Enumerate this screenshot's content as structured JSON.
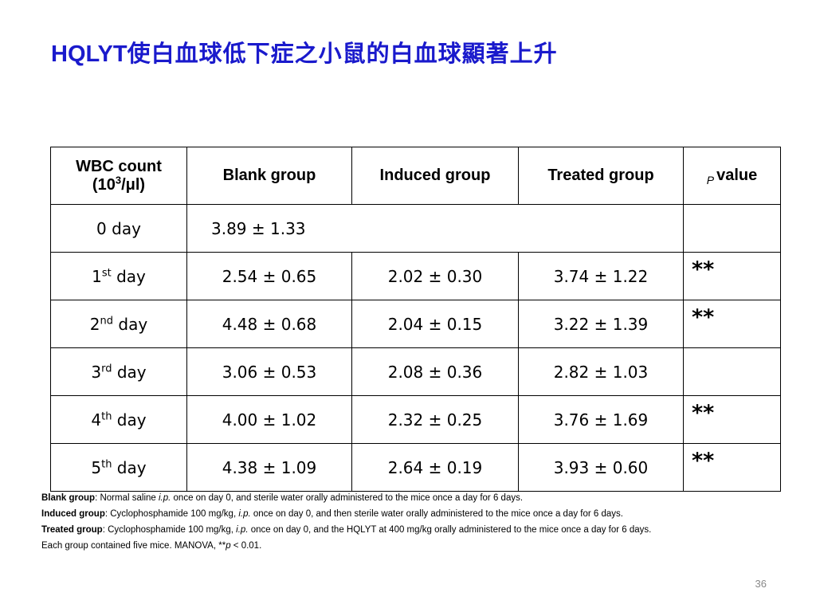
{
  "title": {
    "latin": "HQLYT",
    "cjk": "使白血球低下症之小鼠的白血球顯著上升"
  },
  "table": {
    "headers": {
      "wbc_line1": "WBC count",
      "wbc_line2_prefix": "(10",
      "wbc_line2_sup": "3",
      "wbc_line2_suffix": "/μl)",
      "blank": "Blank group",
      "induced": "Induced group",
      "treated": "Treated group",
      "p_letter": "P",
      "p_rest": "value"
    },
    "rows": [
      {
        "day_num": "0",
        "day_sup": "",
        "day_text": " day",
        "blank": "3.89 ± 1.33",
        "induced": "",
        "treated": "",
        "p": ""
      },
      {
        "day_num": "1",
        "day_sup": "st",
        "day_text": " day",
        "blank": "2.54 ± 0.65",
        "induced": "2.02 ± 0.30",
        "treated": "3.74 ± 1.22",
        "p": "**"
      },
      {
        "day_num": "2",
        "day_sup": "nd",
        "day_text": " day",
        "blank": "4.48 ± 0.68",
        "induced": "2.04 ± 0.15",
        "treated": "3.22 ± 1.39",
        "p": "**"
      },
      {
        "day_num": "3",
        "day_sup": "rd",
        "day_text": " day",
        "blank": "3.06 ± 0.53",
        "induced": "2.08 ± 0.36",
        "treated": "2.82 ± 1.03",
        "p": ""
      },
      {
        "day_num": "4",
        "day_sup": "th",
        "day_text": " day",
        "blank": "4.00 ± 1.02",
        "induced": "2.32 ± 0.25",
        "treated": "3.76 ± 1.69",
        "p": "**"
      },
      {
        "day_num": "5",
        "day_sup": "th",
        "day_text": " day",
        "blank": "4.38 ± 1.09",
        "induced": "2.64 ± 0.19",
        "treated": "3.93 ± 0.60",
        "p": "**"
      }
    ]
  },
  "footnotes": {
    "blank": {
      "label": "Blank group",
      "before_ip": ": Normal saline ",
      "ip": "i.p.",
      "after_ip": " once on day 0, and sterile water orally administered to the mice once a day for 6 days."
    },
    "induced": {
      "label": "Induced group",
      "before_ip": ": Cyclophosphamide 100 mg/kg, ",
      "ip": "i.p.",
      "after_ip": " once on day 0, and then sterile water orally administered to the mice once a day for 6 days."
    },
    "treated": {
      "label": "Treated group",
      "before_ip": ": Cyclophosphamide 100 mg/kg, ",
      "ip": "i.p.",
      "after_ip": " once on day 0, and the HQLYT at 400 mg/kg orally administered to the mice once a day for 6 days."
    },
    "note": {
      "before": "Each group contained five mice. MANOVA, **",
      "p": "p",
      "after": " < 0.01."
    }
  },
  "page_number": "36",
  "colors": {
    "title": "#1a1acc",
    "border": "#000000",
    "page_number": "#888888"
  }
}
